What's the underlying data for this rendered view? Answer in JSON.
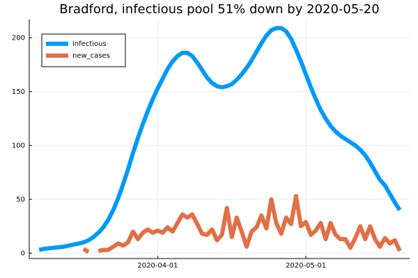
{
  "chart_data": {
    "type": "line",
    "title": "Bradford, infectious pool 51% down by 2020-05-20",
    "x": [
      "2020-03-08",
      "2020-03-09",
      "2020-03-10",
      "2020-03-11",
      "2020-03-12",
      "2020-03-13",
      "2020-03-14",
      "2020-03-15",
      "2020-03-16",
      "2020-03-17",
      "2020-03-18",
      "2020-03-19",
      "2020-03-20",
      "2020-03-21",
      "2020-03-22",
      "2020-03-23",
      "2020-03-24",
      "2020-03-25",
      "2020-03-26",
      "2020-03-27",
      "2020-03-28",
      "2020-03-29",
      "2020-03-30",
      "2020-03-31",
      "2020-04-01",
      "2020-04-02",
      "2020-04-03",
      "2020-04-04",
      "2020-04-05",
      "2020-04-06",
      "2020-04-07",
      "2020-04-08",
      "2020-04-09",
      "2020-04-10",
      "2020-04-11",
      "2020-04-12",
      "2020-04-13",
      "2020-04-14",
      "2020-04-15",
      "2020-04-16",
      "2020-04-17",
      "2020-04-18",
      "2020-04-19",
      "2020-04-20",
      "2020-04-21",
      "2020-04-22",
      "2020-04-23",
      "2020-04-24",
      "2020-04-25",
      "2020-04-26",
      "2020-04-27",
      "2020-04-28",
      "2020-04-29",
      "2020-04-30",
      "2020-05-01",
      "2020-05-02",
      "2020-05-03",
      "2020-05-04",
      "2020-05-05",
      "2020-05-06",
      "2020-05-07",
      "2020-05-08",
      "2020-05-09",
      "2020-05-10",
      "2020-05-11",
      "2020-05-12",
      "2020-05-13",
      "2020-05-14",
      "2020-05-15",
      "2020-05-16",
      "2020-05-17",
      "2020-05-18",
      "2020-05-19",
      "2020-05-20"
    ],
    "series": [
      {
        "name": "infectious",
        "color": "#009af9",
        "values": [
          3,
          4,
          4.5,
          5,
          5.5,
          6,
          7,
          8,
          9,
          10,
          12,
          15,
          19,
          24,
          31,
          40,
          51,
          64,
          78,
          93,
          107,
          120,
          132,
          143,
          153,
          162,
          171,
          178,
          183,
          186,
          186,
          183,
          177,
          170,
          163,
          158,
          155,
          154,
          155,
          157,
          161,
          166,
          172,
          179,
          187,
          195,
          202,
          207,
          209,
          209,
          206,
          199,
          189,
          178,
          166,
          154,
          143,
          133,
          125,
          118,
          113,
          109,
          106,
          103,
          100,
          96,
          91,
          84,
          76,
          68,
          63,
          55,
          47,
          40
        ]
      },
      {
        "name": "new_cases",
        "color": "#e26f46",
        "values": [
          null,
          null,
          null,
          null,
          null,
          null,
          null,
          null,
          null,
          4,
          1,
          null,
          2,
          3,
          3,
          6,
          9,
          7,
          10,
          20,
          13,
          19,
          22,
          19,
          21,
          19,
          24,
          20,
          28,
          36,
          33,
          36,
          27,
          18,
          17,
          22,
          12,
          17,
          42,
          15,
          33,
          20,
          6,
          20,
          24,
          35,
          23,
          50,
          28,
          18,
          33,
          27,
          53,
          25,
          29,
          17,
          21,
          28,
          13,
          28,
          17,
          13,
          13,
          5,
          14,
          25,
          13,
          25,
          13,
          6,
          14,
          9,
          12,
          2
        ]
      }
    ],
    "xlim": [
      "2020-03-06",
      "2020-05-22"
    ],
    "xticks": [
      "2020-04-01",
      "2020-05-01"
    ],
    "ylim": [
      -5,
      217
    ],
    "yticks": [
      0,
      50,
      100,
      150,
      200
    ],
    "grid": true,
    "legend": "top-left"
  }
}
